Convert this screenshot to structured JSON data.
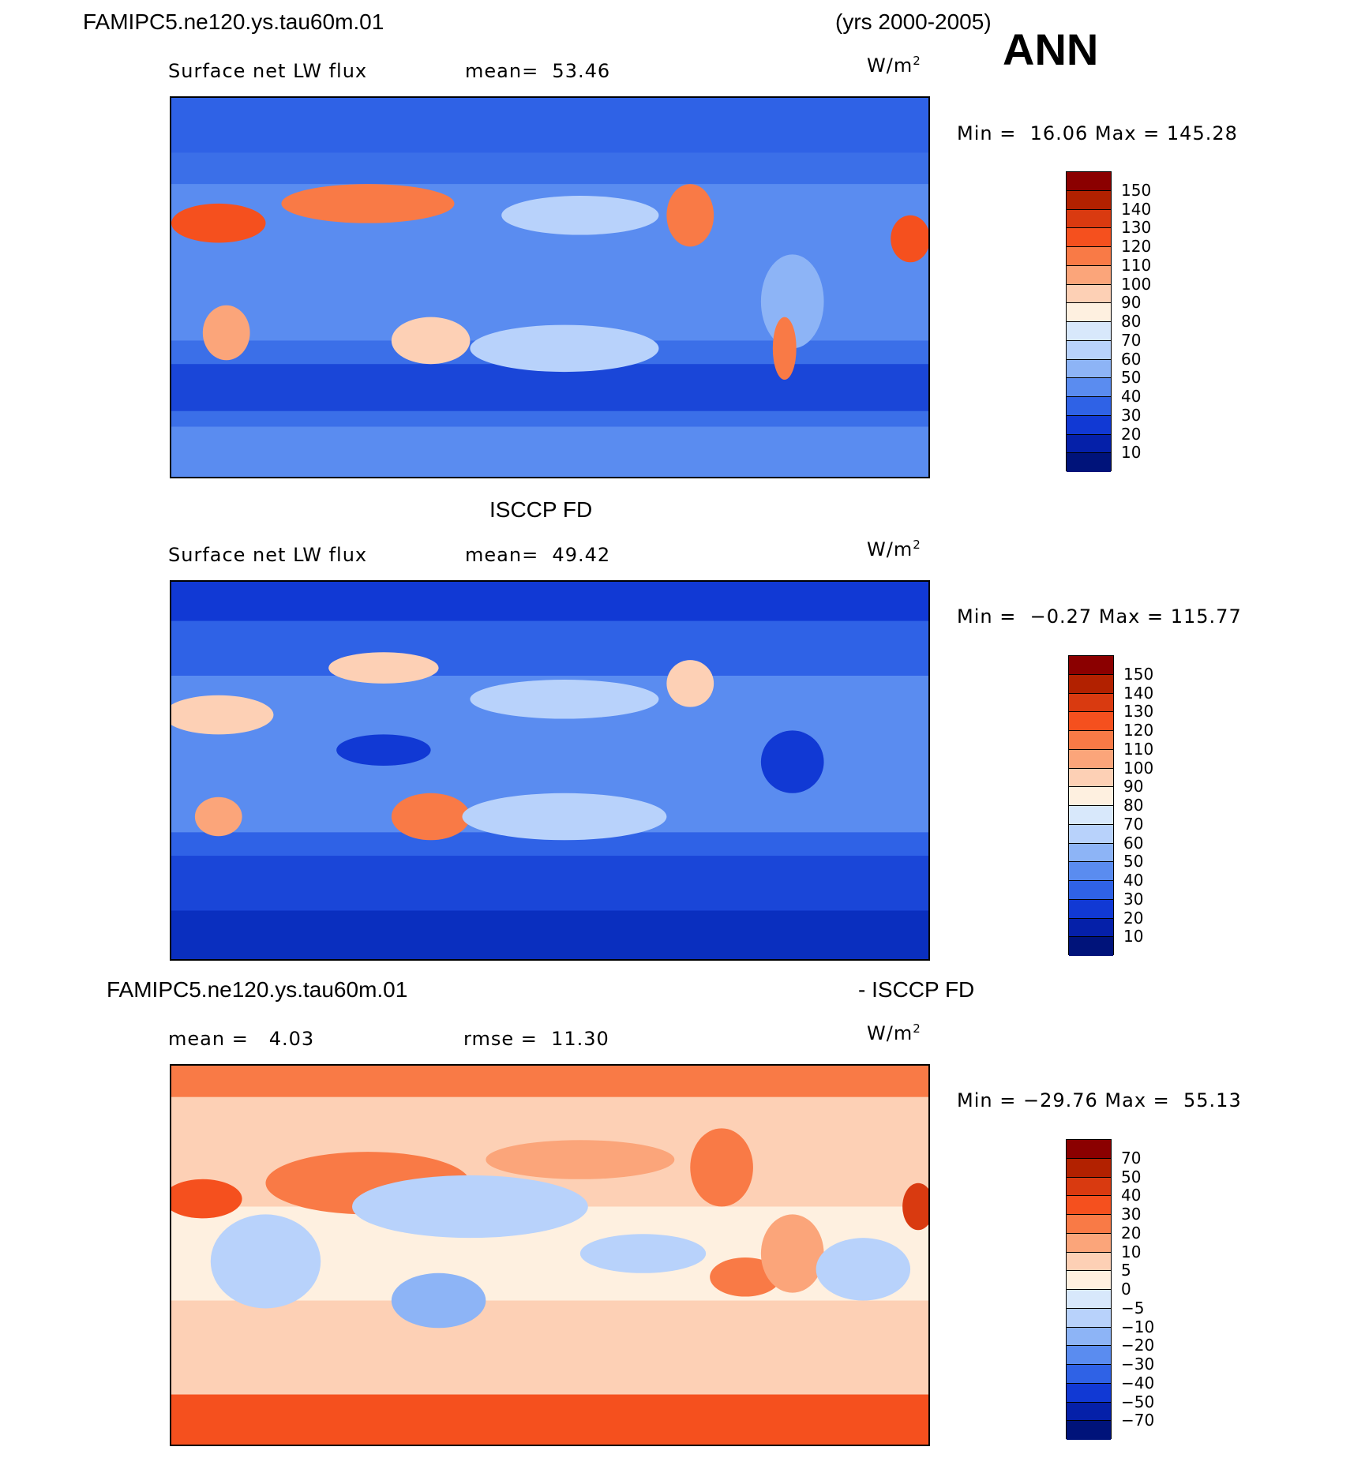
{
  "header": {
    "case_name": "FAMIPC5.ne120.ys.tau60m.01",
    "years": "(yrs 2000-2005)",
    "season": "ANN"
  },
  "panels": [
    {
      "title": "",
      "variable": "Surface net LW flux",
      "stat_text": "mean=  53.46",
      "units": "W/m",
      "units_sup": "2",
      "minmax": "Min =  16.06 Max = 145.28",
      "colorbar": {
        "levels": [
          "150",
          "140",
          "130",
          "120",
          "110",
          "100",
          "90",
          "80",
          "70",
          "60",
          "50",
          "40",
          "30",
          "20",
          "10"
        ],
        "colors": [
          "#8b0000",
          "#b22100",
          "#d93a10",
          "#f5501e",
          "#f97a46",
          "#fba57a",
          "#fdd0b5",
          "#fef0e0",
          "#d8e8fb",
          "#b8d2fb",
          "#8db4f6",
          "#5a8cf0",
          "#2f62e6",
          "#1139d4",
          "#0520a9",
          "#00137a"
        ]
      }
    },
    {
      "title": "ISCCP FD",
      "variable": "Surface net LW flux",
      "stat_text": "mean=  49.42",
      "units": "W/m",
      "units_sup": "2",
      "minmax": "Min =  −0.27 Max = 115.77",
      "colorbar": {
        "levels": [
          "150",
          "140",
          "130",
          "120",
          "110",
          "100",
          "90",
          "80",
          "70",
          "60",
          "50",
          "40",
          "30",
          "20",
          "10"
        ],
        "colors": [
          "#8b0000",
          "#b22100",
          "#d93a10",
          "#f5501e",
          "#f97a46",
          "#fba57a",
          "#fdd0b5",
          "#fef0e0",
          "#d8e8fb",
          "#b8d2fb",
          "#8db4f6",
          "#5a8cf0",
          "#2f62e6",
          "#1139d4",
          "#0520a9",
          "#00137a"
        ]
      }
    },
    {
      "title_left": "FAMIPC5.ne120.ys.tau60m.01",
      "title_right": "- ISCCP FD",
      "stat_mean": "mean =   4.03",
      "stat_rmse": "rmse =  11.30",
      "units": "W/m",
      "units_sup": "2",
      "minmax": "Min = −29.76 Max =  55.13",
      "colorbar": {
        "levels": [
          "70",
          "50",
          "40",
          "30",
          "20",
          "10",
          "5",
          "0",
          "−5",
          "−10",
          "−20",
          "−30",
          "−40",
          "−50",
          "−70"
        ],
        "colors": [
          "#8b0000",
          "#b22100",
          "#d93a10",
          "#f5501e",
          "#f97a46",
          "#fba57a",
          "#fdd0b5",
          "#fef0e0",
          "#d8e8fb",
          "#b8d2fb",
          "#8db4f6",
          "#5a8cf0",
          "#2f62e6",
          "#1139d4",
          "#0520a9",
          "#00137a"
        ]
      }
    }
  ]
}
